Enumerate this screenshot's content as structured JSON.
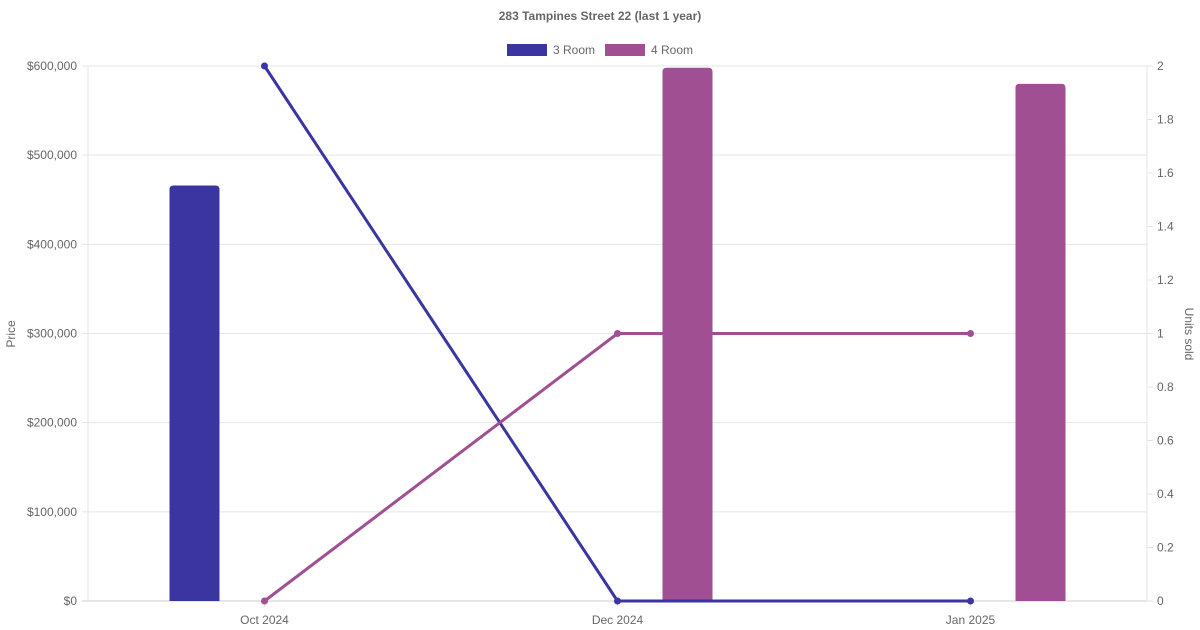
{
  "chart_data": {
    "type": "bar",
    "title": "283 Tampines Street 22 (last 1 year)",
    "categories": [
      "Oct 2024",
      "Dec 2024",
      "Jan 2025"
    ],
    "ylabel": "Price",
    "y2label": "Units sold",
    "ylim": [
      0,
      600000
    ],
    "y2lim": [
      0,
      2
    ],
    "yticks": [
      "$0",
      "$100,000",
      "$200,000",
      "$300,000",
      "$400,000",
      "$500,000",
      "$600,000"
    ],
    "y2ticks": [
      "0",
      "0.2",
      "0.4",
      "0.6",
      "0.8",
      "1",
      "1.2",
      "1.4",
      "1.6",
      "1.8",
      "2"
    ],
    "grid": true,
    "legend_position": "top",
    "series": [
      {
        "name": "3 Room",
        "color": "#3a35a0",
        "price": [
          466000,
          null,
          null
        ],
        "units_sold": [
          2,
          0,
          0
        ]
      },
      {
        "name": "4 Room",
        "color": "#9f4f92",
        "price": [
          null,
          598000,
          580000
        ],
        "units_sold": [
          0,
          1,
          1
        ]
      }
    ]
  }
}
